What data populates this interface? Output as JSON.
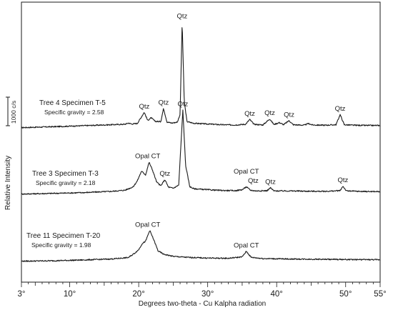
{
  "chart_data": {
    "type": "line",
    "xlabel": "Degrees two-theta - Cu Kalpha radiation",
    "ylabel": "Relative Intensity",
    "scale_bar_label": "1000 c/s",
    "xlim": [
      3,
      55
    ],
    "x_ticks": [
      {
        "value": 3,
        "label": "3°"
      },
      {
        "value": 10,
        "label": "10°"
      },
      {
        "value": 20,
        "label": "20°"
      },
      {
        "value": 30,
        "label": "30°"
      },
      {
        "value": 40,
        "label": "40°"
      },
      {
        "value": 50,
        "label": "50°"
      },
      {
        "value": 55,
        "label": "55°"
      }
    ],
    "series": [
      {
        "title": "Tree 4 Specimen T-5",
        "subtitle": "Specific gravity = 2.58",
        "baseline": 0,
        "points": [
          [
            3,
            20
          ],
          [
            8,
            28
          ],
          [
            12,
            36
          ],
          [
            16,
            44
          ],
          [
            18,
            48
          ],
          [
            18.5,
            58
          ],
          [
            19,
            50
          ],
          [
            19.8,
            55
          ],
          [
            20.3,
            100
          ],
          [
            20.8,
            148
          ],
          [
            21.3,
            80
          ],
          [
            21.8,
            102
          ],
          [
            22.4,
            72
          ],
          [
            23.2,
            70
          ],
          [
            23.6,
            180
          ],
          [
            24.1,
            66
          ],
          [
            24.8,
            58
          ],
          [
            25.6,
            66
          ],
          [
            26.0,
            130
          ],
          [
            26.3,
            900
          ],
          [
            26.6,
            240
          ],
          [
            27.0,
            70
          ],
          [
            28,
            56
          ],
          [
            30,
            50
          ],
          [
            32,
            44
          ],
          [
            34,
            42
          ],
          [
            35.5,
            48
          ],
          [
            36.1,
            88
          ],
          [
            36.7,
            48
          ],
          [
            38,
            42
          ],
          [
            39.0,
            92
          ],
          [
            39.6,
            46
          ],
          [
            40.4,
            62
          ],
          [
            41.0,
            44
          ],
          [
            41.8,
            78
          ],
          [
            42.4,
            44
          ],
          [
            44,
            40
          ],
          [
            44.6,
            54
          ],
          [
            45.2,
            42
          ],
          [
            47,
            40
          ],
          [
            48.6,
            44
          ],
          [
            49.2,
            128
          ],
          [
            49.8,
            44
          ],
          [
            51,
            40
          ],
          [
            53,
            38
          ],
          [
            55,
            38
          ]
        ],
        "peak_labels": [
          {
            "x": 20.8,
            "y": 150,
            "label": "Qtz"
          },
          {
            "x": 23.6,
            "y": 182,
            "label": "Qtz"
          },
          {
            "x": 26.3,
            "y": 902,
            "label": "Qtz"
          },
          {
            "x": 36.1,
            "y": 90,
            "label": "Qtz"
          },
          {
            "x": 39.0,
            "y": 94,
            "label": "Qtz"
          },
          {
            "x": 41.8,
            "y": 80,
            "label": "Qtz"
          },
          {
            "x": 49.2,
            "y": 130,
            "label": "Qtz"
          }
        ]
      },
      {
        "title": "Tree 3 Specimen T-3",
        "subtitle": "Specific gravity = 2.18",
        "baseline": 0,
        "points": [
          [
            3,
            20
          ],
          [
            8,
            26
          ],
          [
            12,
            32
          ],
          [
            16,
            42
          ],
          [
            18,
            52
          ],
          [
            19.2,
            80
          ],
          [
            19.8,
            130
          ],
          [
            20.4,
            210
          ],
          [
            21.0,
            180
          ],
          [
            21.5,
            285
          ],
          [
            22.0,
            220
          ],
          [
            22.6,
            120
          ],
          [
            23.2,
            88
          ],
          [
            23.8,
            140
          ],
          [
            24.3,
            78
          ],
          [
            25.0,
            68
          ],
          [
            25.8,
            95
          ],
          [
            26.4,
            720
          ],
          [
            26.8,
            260
          ],
          [
            27.4,
            82
          ],
          [
            28,
            64
          ],
          [
            30,
            56
          ],
          [
            32,
            50
          ],
          [
            34,
            48
          ],
          [
            35.0,
            56
          ],
          [
            35.6,
            80
          ],
          [
            36.2,
            52
          ],
          [
            37,
            46
          ],
          [
            38.6,
            48
          ],
          [
            39.1,
            72
          ],
          [
            39.6,
            46
          ],
          [
            42,
            46
          ],
          [
            44,
            44
          ],
          [
            47,
            42
          ],
          [
            49.2,
            48
          ],
          [
            49.6,
            86
          ],
          [
            50.1,
            46
          ],
          [
            52,
            42
          ],
          [
            55,
            40
          ]
        ],
        "peak_labels": [
          {
            "x": 21.3,
            "y": 290,
            "label": "Opal CT"
          },
          {
            "x": 23.8,
            "y": 142,
            "label": "Qtz"
          },
          {
            "x": 26.4,
            "y": 722,
            "label": "Qtz"
          },
          {
            "x": 35.6,
            "y": 160,
            "label": "Opal CT"
          },
          {
            "x": 36.6,
            "y": 82,
            "label": "Qtz"
          },
          {
            "x": 39.1,
            "y": 74,
            "label": "Qtz"
          },
          {
            "x": 49.6,
            "y": 88,
            "label": "Qtz"
          }
        ]
      },
      {
        "title": "Tree 11 Specimen T-20",
        "subtitle": "Specific gravity = 1.98",
        "baseline": 0,
        "points": [
          [
            3,
            14
          ],
          [
            8,
            18
          ],
          [
            12,
            24
          ],
          [
            16,
            32
          ],
          [
            18.5,
            44
          ],
          [
            19.4,
            80
          ],
          [
            20.0,
            110
          ],
          [
            20.5,
            160
          ],
          [
            21.0,
            180
          ],
          [
            21.6,
            270
          ],
          [
            22.2,
            190
          ],
          [
            22.8,
            100
          ],
          [
            23.6,
            72
          ],
          [
            25,
            54
          ],
          [
            27,
            46
          ],
          [
            30,
            40
          ],
          [
            33,
            38
          ],
          [
            35.0,
            50
          ],
          [
            35.6,
            96
          ],
          [
            36.3,
            46
          ],
          [
            38,
            36
          ],
          [
            42,
            32
          ],
          [
            46,
            30
          ],
          [
            50,
            28
          ],
          [
            55,
            26
          ]
        ],
        "peak_labels": [
          {
            "x": 21.3,
            "y": 272,
            "label": "Opal CT"
          },
          {
            "x": 35.6,
            "y": 98,
            "label": "Opal CT"
          }
        ]
      }
    ]
  }
}
